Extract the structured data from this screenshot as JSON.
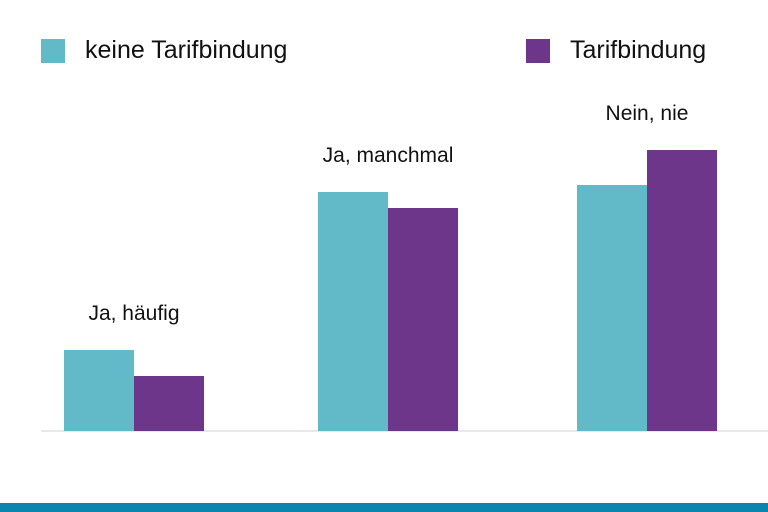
{
  "chart_data": {
    "type": "bar",
    "title": "",
    "xlabel": "",
    "ylabel": "",
    "categories": [
      "Ja, häufig",
      "Ja, manchmal",
      "Nein, nie"
    ],
    "series": [
      {
        "name": "keine Tarifbindung",
        "color": "#62bac9",
        "values": [
          8.1,
          23.9,
          24.6
        ]
      },
      {
        "name": "Tarifbindung",
        "color": "#6e368b",
        "values": [
          5.5,
          22.3,
          28.1
        ]
      }
    ],
    "ylim": [
      0,
      30
    ],
    "axis_visible": false,
    "grid": false,
    "legend_placement": "top"
  },
  "legend": {
    "items": [
      {
        "label": "keine Tarifbindung",
        "color": "#62bac9"
      },
      {
        "label": "Tarifbindung",
        "color": "#6e368b"
      }
    ]
  },
  "footer_color": "#0a85ad"
}
